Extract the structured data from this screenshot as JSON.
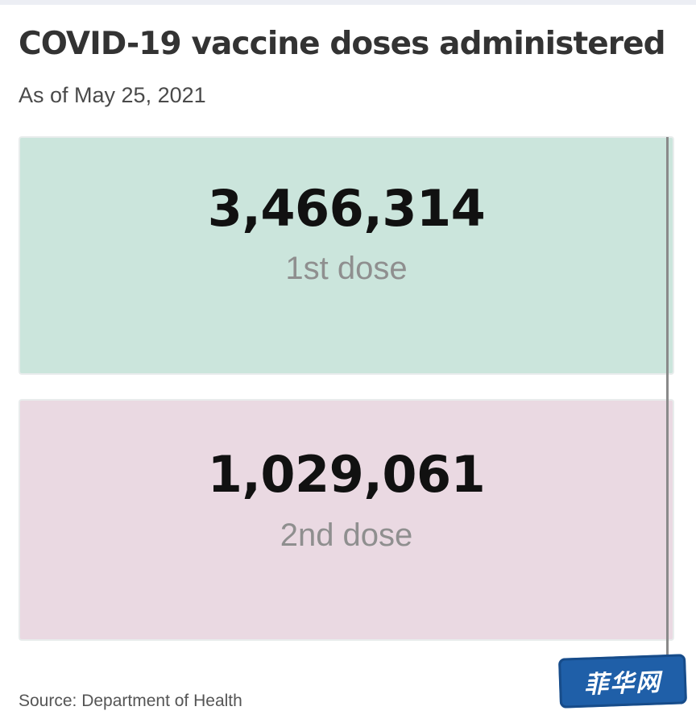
{
  "header": {
    "title": "COVID-19 vaccine doses administered",
    "subtitle": "As of May 25, 2021"
  },
  "stats": [
    {
      "value": "3,466,314",
      "label": "1st dose",
      "color": "#cbe5dc"
    },
    {
      "value": "1,029,061",
      "label": "2nd dose",
      "color": "#ead9e2"
    }
  ],
  "footer": {
    "source": "Source: Department of Health"
  },
  "watermark": {
    "text": "菲华网",
    "color": "#1f5fa8"
  }
}
